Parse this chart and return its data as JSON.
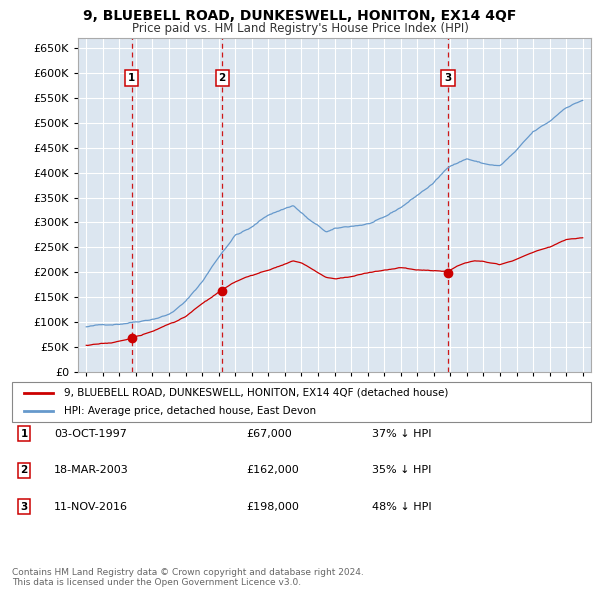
{
  "title": "9, BLUEBELL ROAD, DUNKESWELL, HONITON, EX14 4QF",
  "subtitle": "Price paid vs. HM Land Registry's House Price Index (HPI)",
  "red_label": "9, BLUEBELL ROAD, DUNKESWELL, HONITON, EX14 4QF (detached house)",
  "blue_label": "HPI: Average price, detached house, East Devon",
  "sales": [
    {
      "label": "1",
      "date_x": 1997.75,
      "price": 67000,
      "text_date": "03-OCT-1997",
      "text_price": "£67,000",
      "text_pct": "37% ↓ HPI"
    },
    {
      "label": "2",
      "date_x": 2003.21,
      "price": 162000,
      "text_date": "18-MAR-2003",
      "text_price": "£162,000",
      "text_pct": "35% ↓ HPI"
    },
    {
      "label": "3",
      "date_x": 2016.86,
      "price": 198000,
      "text_date": "11-NOV-2016",
      "text_price": "£198,000",
      "text_pct": "48% ↓ HPI"
    }
  ],
  "ylim": [
    0,
    670000
  ],
  "xlim": [
    1994.5,
    2025.5
  ],
  "yticks": [
    0,
    50000,
    100000,
    150000,
    200000,
    250000,
    300000,
    350000,
    400000,
    450000,
    500000,
    550000,
    600000,
    650000
  ],
  "background_color": "#dce9f5",
  "plot_bg": "#dce6f0",
  "grid_color": "#ffffff",
  "footer": "Contains HM Land Registry data © Crown copyright and database right 2024.\nThis data is licensed under the Open Government Licence v3.0.",
  "red_color": "#cc0000",
  "blue_color": "#6699cc"
}
